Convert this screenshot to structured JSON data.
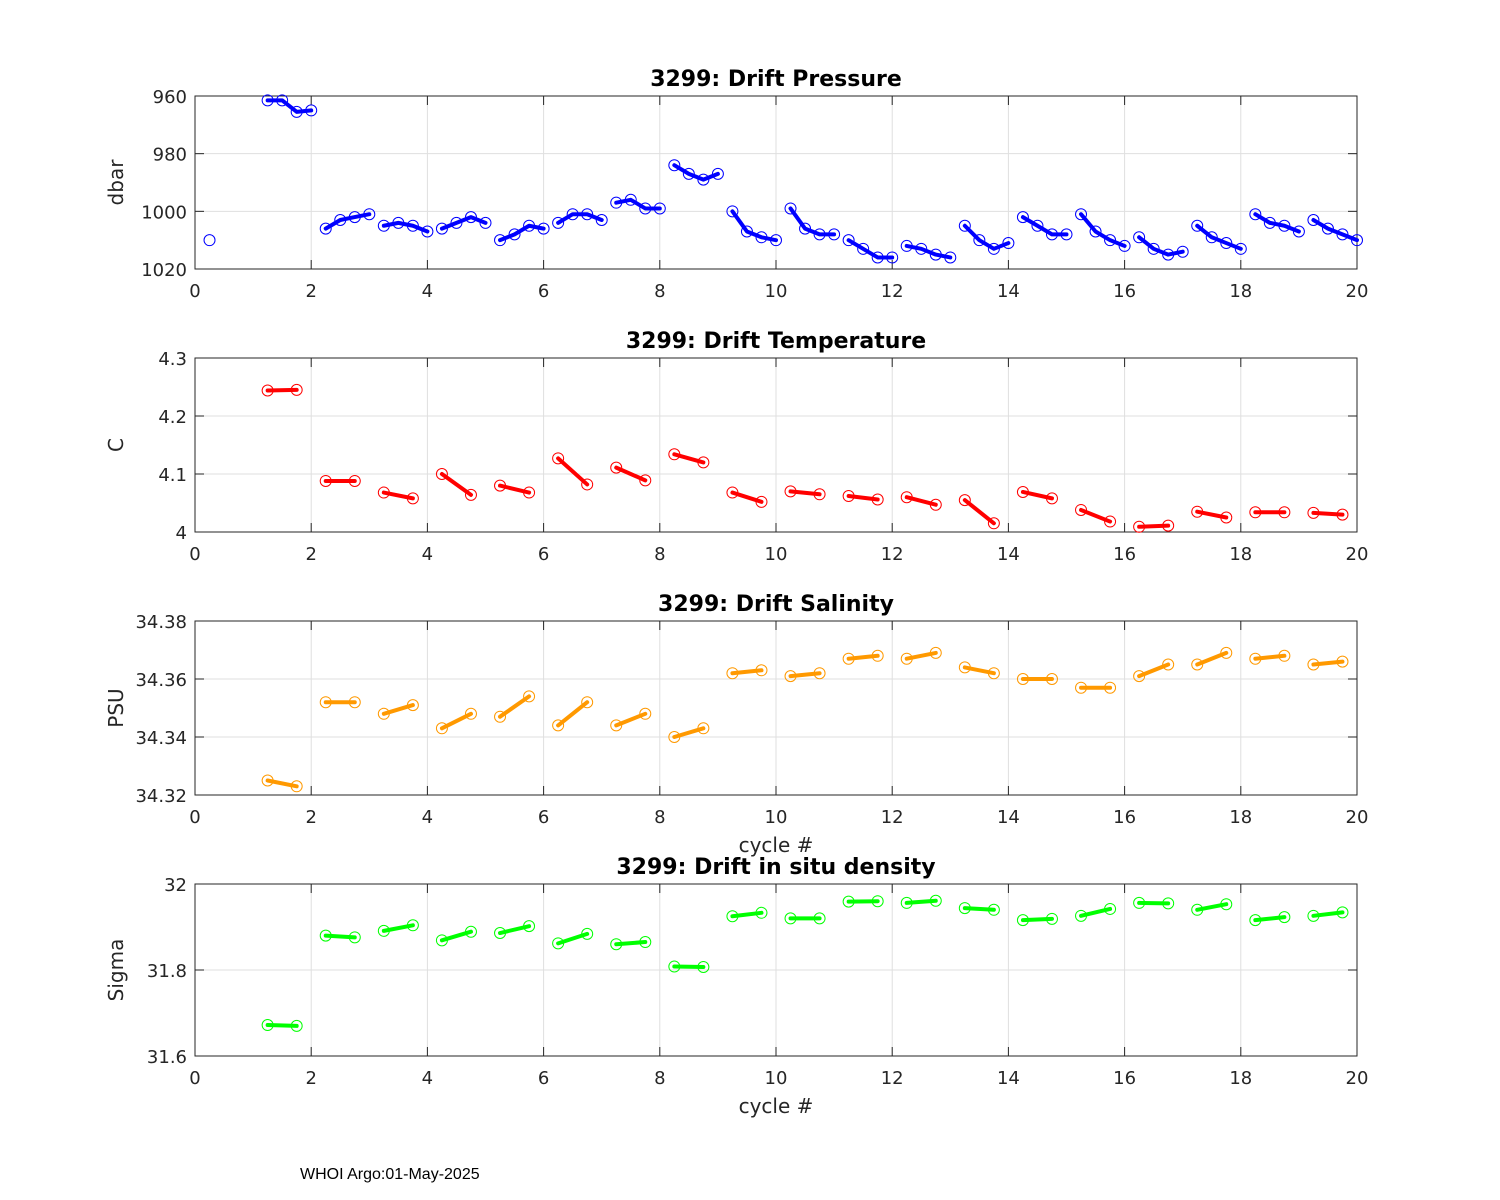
{
  "footer": "WHOI Argo:01-May-2025",
  "chart_data": [
    {
      "type": "line",
      "title": "3299: Drift Pressure",
      "ylabel": "dbar",
      "xlabel": "",
      "xlim": [
        0,
        20
      ],
      "ylim": [
        960,
        1020
      ],
      "y_reversed": true,
      "xticks": [
        0,
        2,
        4,
        6,
        8,
        10,
        12,
        14,
        16,
        18,
        20
      ],
      "yticks": [
        960,
        980,
        1000,
        1020
      ],
      "grid": true,
      "color": "#0000ff",
      "segments": [
        {
          "x": [
            0.25
          ],
          "y": [
            1010
          ]
        },
        {
          "x": [
            1.25,
            1.5,
            1.75,
            2.0
          ],
          "y": [
            961.5,
            961.5,
            965.5,
            965.0
          ]
        },
        {
          "x": [
            2.25,
            2.5,
            2.75,
            3.0
          ],
          "y": [
            1006,
            1003,
            1002,
            1001
          ]
        },
        {
          "x": [
            3.25,
            3.5,
            3.75,
            4.0
          ],
          "y": [
            1005,
            1004,
            1005,
            1007
          ]
        },
        {
          "x": [
            4.25,
            4.5,
            4.75,
            5.0
          ],
          "y": [
            1006,
            1004,
            1002,
            1004
          ]
        },
        {
          "x": [
            5.25,
            5.5,
            5.75,
            6.0
          ],
          "y": [
            1010,
            1008,
            1005,
            1006
          ]
        },
        {
          "x": [
            6.25,
            6.5,
            6.75,
            7.0
          ],
          "y": [
            1004,
            1001,
            1001,
            1003
          ]
        },
        {
          "x": [
            7.25,
            7.5,
            7.75,
            8.0
          ],
          "y": [
            997,
            996,
            999,
            999
          ]
        },
        {
          "x": [
            8.25,
            8.5,
            8.75,
            9.0
          ],
          "y": [
            984,
            987,
            989,
            987
          ]
        },
        {
          "x": [
            9.25,
            9.5,
            9.75,
            10.0
          ],
          "y": [
            1000,
            1007,
            1009,
            1010
          ]
        },
        {
          "x": [
            10.25,
            10.5,
            10.75,
            11.0
          ],
          "y": [
            999,
            1006,
            1008,
            1008
          ]
        },
        {
          "x": [
            11.25,
            11.5,
            11.75,
            12.0
          ],
          "y": [
            1010,
            1013,
            1016,
            1016
          ]
        },
        {
          "x": [
            12.25,
            12.5,
            12.75,
            13.0
          ],
          "y": [
            1012,
            1013,
            1015,
            1016
          ]
        },
        {
          "x": [
            13.25,
            13.5,
            13.75,
            14.0
          ],
          "y": [
            1005,
            1010,
            1013,
            1011
          ]
        },
        {
          "x": [
            14.25,
            14.5,
            14.75,
            15.0
          ],
          "y": [
            1002,
            1005,
            1008,
            1008
          ]
        },
        {
          "x": [
            15.25,
            15.5,
            15.75,
            16.0
          ],
          "y": [
            1001,
            1007,
            1010,
            1012
          ]
        },
        {
          "x": [
            16.25,
            16.5,
            16.75,
            17.0
          ],
          "y": [
            1009,
            1013,
            1015,
            1014
          ]
        },
        {
          "x": [
            17.25,
            17.5,
            17.75,
            18.0
          ],
          "y": [
            1005,
            1009,
            1011,
            1013
          ]
        },
        {
          "x": [
            18.25,
            18.5,
            18.75,
            19.0
          ],
          "y": [
            1001,
            1004,
            1005,
            1007
          ]
        },
        {
          "x": [
            19.25,
            19.5,
            19.75,
            20.0
          ],
          "y": [
            1003,
            1006,
            1008,
            1010
          ]
        }
      ]
    },
    {
      "type": "line",
      "title": "3299: Drift Temperature",
      "ylabel": "C",
      "xlabel": "",
      "xlim": [
        0,
        20
      ],
      "ylim": [
        4,
        4.3
      ],
      "xticks": [
        0,
        2,
        4,
        6,
        8,
        10,
        12,
        14,
        16,
        18,
        20
      ],
      "yticks": [
        4,
        4.1,
        4.2,
        4.3
      ],
      "grid": true,
      "color": "#ff0000",
      "segments": [
        {
          "x": [
            1.25,
            1.75
          ],
          "y": [
            4.244,
            4.245
          ]
        },
        {
          "x": [
            2.25,
            2.75
          ],
          "y": [
            4.088,
            4.088
          ]
        },
        {
          "x": [
            3.25,
            3.75
          ],
          "y": [
            4.068,
            4.058
          ]
        },
        {
          "x": [
            4.25,
            4.75
          ],
          "y": [
            4.1,
            4.064
          ]
        },
        {
          "x": [
            5.25,
            5.75
          ],
          "y": [
            4.08,
            4.068
          ]
        },
        {
          "x": [
            6.25,
            6.75
          ],
          "y": [
            4.127,
            4.082
          ]
        },
        {
          "x": [
            7.25,
            7.75
          ],
          "y": [
            4.111,
            4.089
          ]
        },
        {
          "x": [
            8.25,
            8.75
          ],
          "y": [
            4.134,
            4.12
          ]
        },
        {
          "x": [
            9.25,
            9.75
          ],
          "y": [
            4.068,
            4.052
          ]
        },
        {
          "x": [
            10.25,
            10.75
          ],
          "y": [
            4.07,
            4.065
          ]
        },
        {
          "x": [
            11.25,
            11.75
          ],
          "y": [
            4.062,
            4.056
          ]
        },
        {
          "x": [
            12.25,
            12.75
          ],
          "y": [
            4.06,
            4.047
          ]
        },
        {
          "x": [
            13.25,
            13.75
          ],
          "y": [
            4.055,
            4.015
          ]
        },
        {
          "x": [
            14.25,
            14.75
          ],
          "y": [
            4.069,
            4.058
          ]
        },
        {
          "x": [
            15.25,
            15.75
          ],
          "y": [
            4.038,
            4.018
          ]
        },
        {
          "x": [
            16.25,
            16.75
          ],
          "y": [
            4.009,
            4.011
          ]
        },
        {
          "x": [
            17.25,
            17.75
          ],
          "y": [
            4.035,
            4.025
          ]
        },
        {
          "x": [
            18.25,
            18.75
          ],
          "y": [
            4.034,
            4.034
          ]
        },
        {
          "x": [
            19.25,
            19.75
          ],
          "y": [
            4.033,
            4.03
          ]
        }
      ]
    },
    {
      "type": "line",
      "title": "3299: Drift Salinity",
      "ylabel": "PSU",
      "xlabel": "cycle #",
      "xlim": [
        0,
        20
      ],
      "ylim": [
        34.32,
        34.38
      ],
      "xticks": [
        0,
        2,
        4,
        6,
        8,
        10,
        12,
        14,
        16,
        18,
        20
      ],
      "yticks": [
        34.32,
        34.34,
        34.36,
        34.38
      ],
      "grid": true,
      "color": "#ff9900",
      "segments": [
        {
          "x": [
            1.25,
            1.75
          ],
          "y": [
            34.325,
            34.323
          ]
        },
        {
          "x": [
            2.25,
            2.75
          ],
          "y": [
            34.352,
            34.352
          ]
        },
        {
          "x": [
            3.25,
            3.75
          ],
          "y": [
            34.348,
            34.351
          ]
        },
        {
          "x": [
            4.25,
            4.75
          ],
          "y": [
            34.343,
            34.348
          ]
        },
        {
          "x": [
            5.25,
            5.75
          ],
          "y": [
            34.347,
            34.354
          ]
        },
        {
          "x": [
            6.25,
            6.75
          ],
          "y": [
            34.344,
            34.352
          ]
        },
        {
          "x": [
            7.25,
            7.75
          ],
          "y": [
            34.344,
            34.348
          ]
        },
        {
          "x": [
            8.25,
            8.75
          ],
          "y": [
            34.34,
            34.343
          ]
        },
        {
          "x": [
            9.25,
            9.75
          ],
          "y": [
            34.362,
            34.363
          ]
        },
        {
          "x": [
            10.25,
            10.75
          ],
          "y": [
            34.361,
            34.362
          ]
        },
        {
          "x": [
            11.25,
            11.75
          ],
          "y": [
            34.367,
            34.368
          ]
        },
        {
          "x": [
            12.25,
            12.75
          ],
          "y": [
            34.367,
            34.369
          ]
        },
        {
          "x": [
            13.25,
            13.75
          ],
          "y": [
            34.364,
            34.362
          ]
        },
        {
          "x": [
            14.25,
            14.75
          ],
          "y": [
            34.36,
            34.36
          ]
        },
        {
          "x": [
            15.25,
            15.75
          ],
          "y": [
            34.357,
            34.357
          ]
        },
        {
          "x": [
            16.25,
            16.75
          ],
          "y": [
            34.361,
            34.365
          ]
        },
        {
          "x": [
            17.25,
            17.75
          ],
          "y": [
            34.365,
            34.369
          ]
        },
        {
          "x": [
            18.25,
            18.75
          ],
          "y": [
            34.367,
            34.368
          ]
        },
        {
          "x": [
            19.25,
            19.75
          ],
          "y": [
            34.365,
            34.366
          ]
        }
      ]
    },
    {
      "type": "line",
      "title": "3299: Drift in situ density",
      "ylabel": "Sigma",
      "xlabel": "cycle #",
      "xlim": [
        0,
        20
      ],
      "ylim": [
        31.6,
        32
      ],
      "xticks": [
        0,
        2,
        4,
        6,
        8,
        10,
        12,
        14,
        16,
        18,
        20
      ],
      "yticks": [
        31.6,
        31.8,
        32
      ],
      "grid": true,
      "color": "#00ff00",
      "segments": [
        {
          "x": [
            1.25,
            1.75
          ],
          "y": [
            31.672,
            31.67
          ]
        },
        {
          "x": [
            2.25,
            2.75
          ],
          "y": [
            31.88,
            31.876
          ]
        },
        {
          "x": [
            3.25,
            3.75
          ],
          "y": [
            31.891,
            31.904
          ]
        },
        {
          "x": [
            4.25,
            4.75
          ],
          "y": [
            31.869,
            31.889
          ]
        },
        {
          "x": [
            5.25,
            5.75
          ],
          "y": [
            31.886,
            31.902
          ]
        },
        {
          "x": [
            6.25,
            6.75
          ],
          "y": [
            31.862,
            31.884
          ]
        },
        {
          "x": [
            7.25,
            7.75
          ],
          "y": [
            31.86,
            31.865
          ]
        },
        {
          "x": [
            8.25,
            8.75
          ],
          "y": [
            31.808,
            31.807
          ]
        },
        {
          "x": [
            9.25,
            9.75
          ],
          "y": [
            31.925,
            31.933
          ]
        },
        {
          "x": [
            10.25,
            10.75
          ],
          "y": [
            31.92,
            31.92
          ]
        },
        {
          "x": [
            11.25,
            11.75
          ],
          "y": [
            31.959,
            31.96
          ]
        },
        {
          "x": [
            12.25,
            12.75
          ],
          "y": [
            31.956,
            31.961
          ]
        },
        {
          "x": [
            13.25,
            13.75
          ],
          "y": [
            31.944,
            31.94
          ]
        },
        {
          "x": [
            14.25,
            14.75
          ],
          "y": [
            31.916,
            31.919
          ]
        },
        {
          "x": [
            15.25,
            15.75
          ],
          "y": [
            31.926,
            31.942
          ]
        },
        {
          "x": [
            16.25,
            16.75
          ],
          "y": [
            31.956,
            31.955
          ]
        },
        {
          "x": [
            17.25,
            17.75
          ],
          "y": [
            31.94,
            31.953
          ]
        },
        {
          "x": [
            18.25,
            18.75
          ],
          "y": [
            31.916,
            31.923
          ]
        },
        {
          "x": [
            19.25,
            19.75
          ],
          "y": [
            31.926,
            31.934
          ]
        }
      ]
    }
  ]
}
